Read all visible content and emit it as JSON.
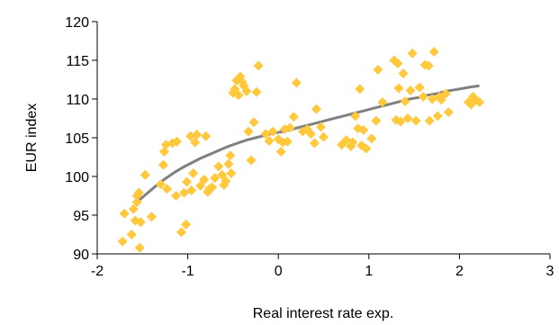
{
  "chart_data": {
    "type": "scatter",
    "xlabel": "Real interest rate exp.",
    "ylabel": "EUR index",
    "xlim": [
      -2,
      3
    ],
    "ylim": [
      90,
      120
    ],
    "x_ticks": [
      "-2",
      "-1",
      "0",
      "1",
      "2",
      "3"
    ],
    "y_ticks": [
      "90",
      "95",
      "100",
      "105",
      "110",
      "115",
      "120"
    ],
    "grid": false,
    "legend": "none",
    "colors": {
      "points": "#FFC83D",
      "fit": "#808080",
      "axis": "#000000"
    },
    "series": [
      {
        "kind": "points",
        "points": [
          [
            -1.72,
            91.6
          ],
          [
            -1.7,
            95.2
          ],
          [
            -1.62,
            92.5
          ],
          [
            -1.6,
            95.8
          ],
          [
            -1.58,
            94.3
          ],
          [
            -1.56,
            97.5
          ],
          [
            -1.56,
            96.7
          ],
          [
            -1.54,
            97.9
          ],
          [
            -1.53,
            90.8
          ],
          [
            -1.52,
            94.1
          ],
          [
            -1.47,
            100.2
          ],
          [
            -1.4,
            94.8
          ],
          [
            -1.3,
            99.0
          ],
          [
            -1.27,
            101.5
          ],
          [
            -1.26,
            103.2
          ],
          [
            -1.24,
            104.1
          ],
          [
            -1.23,
            98.4
          ],
          [
            -1.17,
            104.3
          ],
          [
            -1.13,
            97.5
          ],
          [
            -1.12,
            104.5
          ],
          [
            -1.07,
            92.8
          ],
          [
            -1.04,
            97.9
          ],
          [
            -1.02,
            93.8
          ],
          [
            -1.01,
            99.3
          ],
          [
            -0.97,
            105.2
          ],
          [
            -0.96,
            98.2
          ],
          [
            -0.94,
            100.4
          ],
          [
            -0.92,
            104.4
          ],
          [
            -0.9,
            105.4
          ],
          [
            -0.86,
            98.8
          ],
          [
            -0.82,
            99.6
          ],
          [
            -0.8,
            105.2
          ],
          [
            -0.78,
            98.0
          ],
          [
            -0.76,
            98.4
          ],
          [
            -0.73,
            98.6
          ],
          [
            -0.7,
            99.8
          ],
          [
            -0.66,
            101.3
          ],
          [
            -0.62,
            100.2
          ],
          [
            -0.6,
            98.9
          ],
          [
            -0.58,
            99.4
          ],
          [
            -0.55,
            101.6
          ],
          [
            -0.53,
            102.7
          ],
          [
            -0.52,
            100.4
          ],
          [
            -0.5,
            110.8
          ],
          [
            -0.48,
            111.3
          ],
          [
            -0.46,
            112.4
          ],
          [
            -0.44,
            110.5
          ],
          [
            -0.42,
            112.9
          ],
          [
            -0.4,
            112.2
          ],
          [
            -0.38,
            111.7
          ],
          [
            -0.35,
            111.0
          ],
          [
            -0.33,
            105.8
          ],
          [
            -0.3,
            102.1
          ],
          [
            -0.27,
            107.0
          ],
          [
            -0.24,
            110.9
          ],
          [
            -0.22,
            114.3
          ],
          [
            -0.14,
            105.5
          ],
          [
            -0.1,
            104.6
          ],
          [
            -0.06,
            105.8
          ],
          [
            0.0,
            104.8
          ],
          [
            0.03,
            103.2
          ],
          [
            0.05,
            104.4
          ],
          [
            0.07,
            106.1
          ],
          [
            0.1,
            104.5
          ],
          [
            0.13,
            106.3
          ],
          [
            0.17,
            107.7
          ],
          [
            0.2,
            112.1
          ],
          [
            0.27,
            105.8
          ],
          [
            0.32,
            106.1
          ],
          [
            0.36,
            105.5
          ],
          [
            0.4,
            104.3
          ],
          [
            0.42,
            108.7
          ],
          [
            0.47,
            106.4
          ],
          [
            0.5,
            105.1
          ],
          [
            0.7,
            104.1
          ],
          [
            0.75,
            104.7
          ],
          [
            0.8,
            103.9
          ],
          [
            0.82,
            104.4
          ],
          [
            0.85,
            107.8
          ],
          [
            0.88,
            106.2
          ],
          [
            0.9,
            111.3
          ],
          [
            0.92,
            104.0
          ],
          [
            0.94,
            106.0
          ],
          [
            0.97,
            103.6
          ],
          [
            1.03,
            104.9
          ],
          [
            1.08,
            107.2
          ],
          [
            1.1,
            113.8
          ],
          [
            1.15,
            109.6
          ],
          [
            1.28,
            115.0
          ],
          [
            1.3,
            107.3
          ],
          [
            1.32,
            114.6
          ],
          [
            1.33,
            111.4
          ],
          [
            1.35,
            107.1
          ],
          [
            1.38,
            113.3
          ],
          [
            1.4,
            109.7
          ],
          [
            1.43,
            107.5
          ],
          [
            1.46,
            111.1
          ],
          [
            1.48,
            115.9
          ],
          [
            1.52,
            107.2
          ],
          [
            1.56,
            111.5
          ],
          [
            1.6,
            110.3
          ],
          [
            1.62,
            114.4
          ],
          [
            1.66,
            114.3
          ],
          [
            1.67,
            107.2
          ],
          [
            1.7,
            110.0
          ],
          [
            1.72,
            116.1
          ],
          [
            1.76,
            107.8
          ],
          [
            1.78,
            110.3
          ],
          [
            1.8,
            109.9
          ],
          [
            1.85,
            110.7
          ],
          [
            1.88,
            108.3
          ],
          [
            2.1,
            109.6
          ],
          [
            2.13,
            109.3
          ],
          [
            2.15,
            110.3
          ],
          [
            2.18,
            109.9
          ],
          [
            2.22,
            109.6
          ]
        ]
      },
      {
        "kind": "fit-line",
        "points": [
          [
            -1.55,
            96.8
          ],
          [
            -1.45,
            97.8
          ],
          [
            -1.35,
            98.8
          ],
          [
            -1.25,
            99.7
          ],
          [
            -1.15,
            100.5
          ],
          [
            -1.05,
            101.2
          ],
          [
            -0.95,
            101.8
          ],
          [
            -0.85,
            102.4
          ],
          [
            -0.75,
            102.9
          ],
          [
            -0.65,
            103.4
          ],
          [
            -0.55,
            103.9
          ],
          [
            -0.45,
            104.3
          ],
          [
            -0.35,
            104.7
          ],
          [
            -0.25,
            105.0
          ],
          [
            -0.15,
            105.3
          ],
          [
            -0.05,
            105.6
          ],
          [
            0.05,
            105.8
          ],
          [
            0.15,
            106.1
          ],
          [
            0.25,
            106.4
          ],
          [
            0.35,
            106.7
          ],
          [
            0.45,
            107.0
          ],
          [
            0.55,
            107.3
          ],
          [
            0.65,
            107.6
          ],
          [
            0.75,
            107.9
          ],
          [
            0.85,
            108.2
          ],
          [
            0.95,
            108.5
          ],
          [
            1.05,
            108.8
          ],
          [
            1.15,
            109.1
          ],
          [
            1.25,
            109.4
          ],
          [
            1.35,
            109.7
          ],
          [
            1.45,
            110.0
          ],
          [
            1.55,
            110.2
          ],
          [
            1.65,
            110.5
          ],
          [
            1.75,
            110.7
          ],
          [
            1.85,
            111.0
          ],
          [
            1.95,
            111.2
          ],
          [
            2.05,
            111.4
          ],
          [
            2.15,
            111.6
          ],
          [
            2.22,
            111.7
          ]
        ]
      }
    ]
  }
}
